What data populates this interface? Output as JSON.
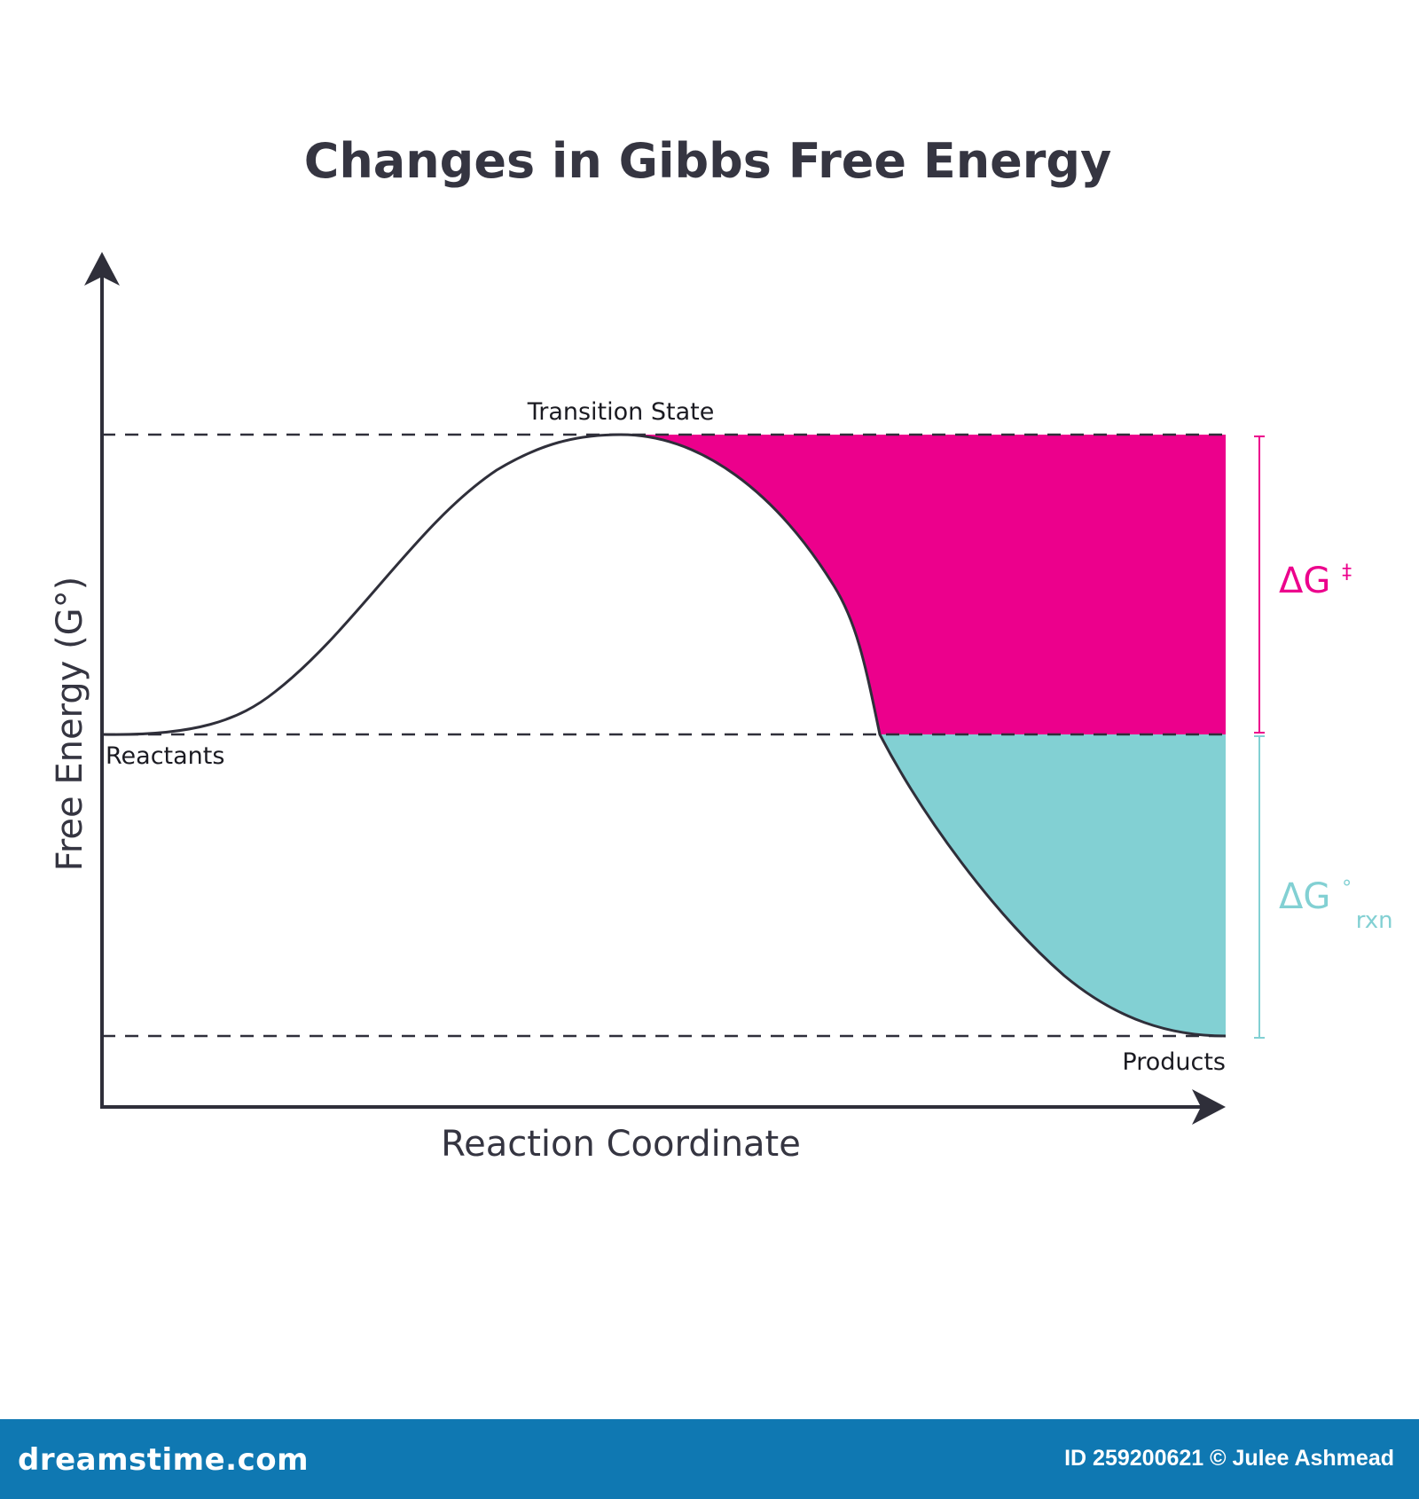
{
  "title": "Changes in Gibbs Free Energy",
  "axes": {
    "y_label": "Free Energy (G°)",
    "x_label": "Reaction Coordinate"
  },
  "points": {
    "transition_state": "Transition State",
    "reactants": "Reactants",
    "products": "Products"
  },
  "deltas": {
    "activation": {
      "main": "ΔG",
      "sup": "‡"
    },
    "reaction": {
      "main": "ΔG",
      "sup": "°",
      "sub": "rxn"
    }
  },
  "colors": {
    "text": "#353541",
    "curve": "#2f2f3a",
    "activation_fill": "#ec008c",
    "reaction_fill": "#82d0d3",
    "footer_bg": "#0f78b2"
  },
  "footer": {
    "logo": "dreamstime.com",
    "id_text": "ID 259200621",
    "credit": "© Julee Ashmead"
  }
}
